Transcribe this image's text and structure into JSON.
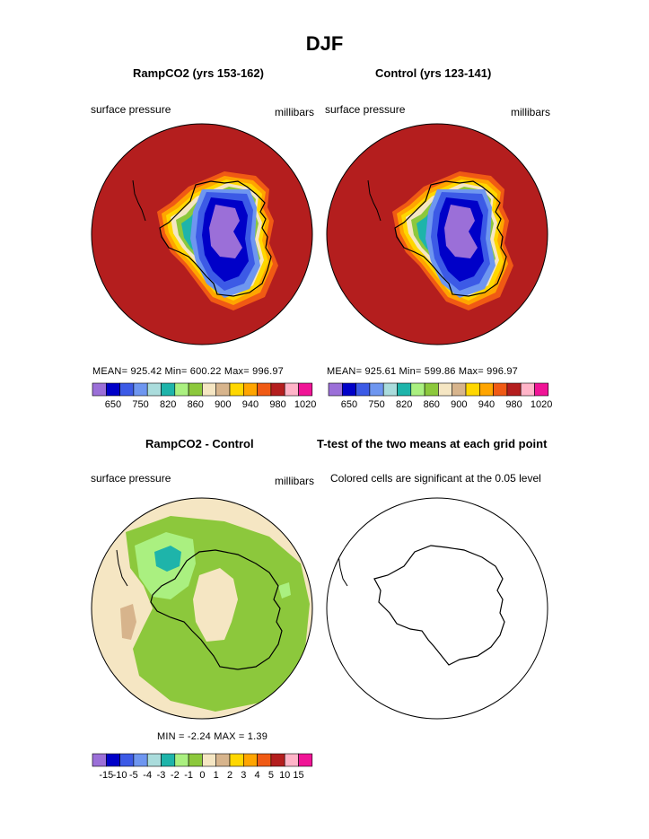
{
  "figure": {
    "title": "DJF"
  },
  "panels": {
    "top_left": {
      "title": "RampCO2 (yrs 153-162)",
      "field": "surface pressure",
      "units": "millibars",
      "stats": "MEAN= 925.42   Min= 600.22   Max= 996.97"
    },
    "top_right": {
      "title": "Control (yrs 123-141)",
      "field": "surface pressure",
      "units": "millibars",
      "stats": "MEAN= 925.61   Min= 599.86   Max= 996.97"
    },
    "bottom_left": {
      "title": "RampCO2 - Control",
      "field": "surface pressure",
      "units": "millibars",
      "stats": "MIN =   -2.24  MAX =    1.39"
    },
    "bottom_right": {
      "title": "T-test of the two means at each grid point",
      "note": "Colored cells are significant at the 0.05 level"
    }
  },
  "pressure_colorbar": {
    "colors": [
      "#9b6fd8",
      "#0000c8",
      "#3c5ae6",
      "#6e96f0",
      "#aadcdc",
      "#1eb4aa",
      "#aaf080",
      "#8cc83c",
      "#f5e6c3",
      "#d7b48c",
      "#ffd700",
      "#ffa500",
      "#f05a14",
      "#b41e1e",
      "#ffb4c8",
      "#f01496"
    ],
    "ticks": [
      "650",
      "750",
      "820",
      "860",
      "900",
      "940",
      "980",
      "1020"
    ]
  },
  "diff_colorbar": {
    "colors": [
      "#9b6fd8",
      "#0000c8",
      "#3c5ae6",
      "#6e96f0",
      "#aadcdc",
      "#1eb4aa",
      "#aaf080",
      "#8cc83c",
      "#f5e6c3",
      "#d7b48c",
      "#ffd700",
      "#ffa500",
      "#f05a14",
      "#b41e1e",
      "#ffb4c8",
      "#f01496"
    ],
    "ticks": [
      "-15",
      "-10",
      "-5",
      "-4",
      "-3",
      "-2",
      "-1",
      "0",
      "1",
      "2",
      "3",
      "4",
      "5",
      "10",
      "15"
    ]
  }
}
